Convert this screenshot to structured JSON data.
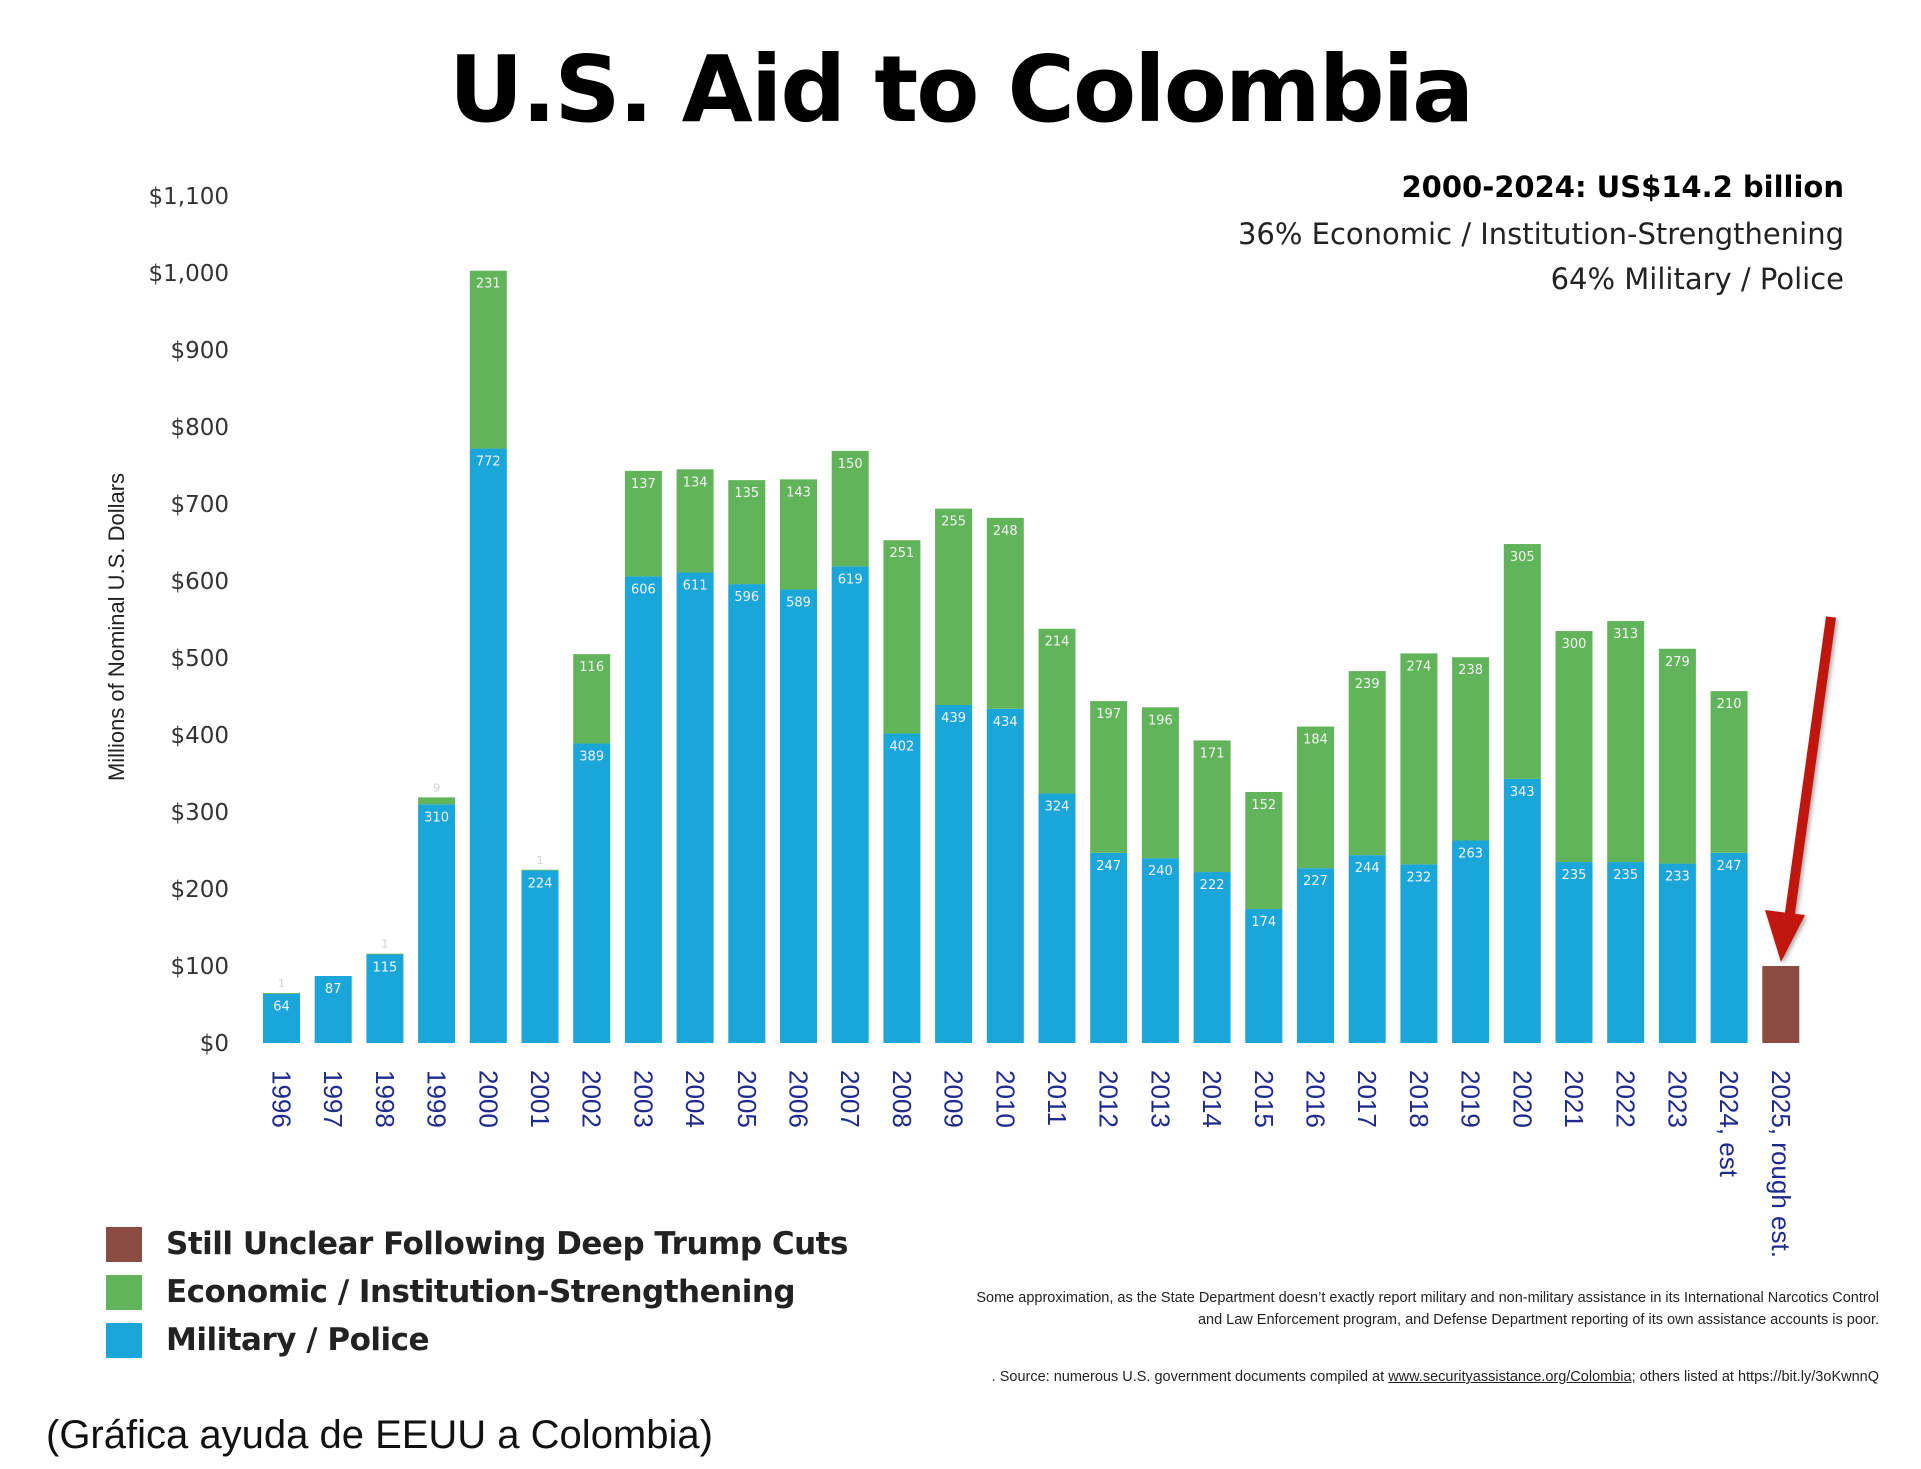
{
  "chart_data": {
    "type": "bar",
    "stacked": true,
    "title": "U.S. Aid to Colombia",
    "xlabel": "",
    "ylabel": "Millions of Nominal U.S. Dollars",
    "ylim": [
      0,
      1100
    ],
    "yticks": [
      0,
      100,
      200,
      300,
      400,
      500,
      600,
      700,
      800,
      900,
      1000,
      1100
    ],
    "ytick_labels": [
      "$0",
      "$100",
      "$200",
      "$300",
      "$400",
      "$500",
      "$600",
      "$700",
      "$800",
      "$900",
      "$1,000",
      "$1,100"
    ],
    "grid": false,
    "legend_position": "bottom-left",
    "categories": [
      "1996",
      "1997",
      "1998",
      "1999",
      "2000",
      "2001",
      "2002",
      "2003",
      "2004",
      "2005",
      "2006",
      "2007",
      "2008",
      "2009",
      "2010",
      "2011",
      "2012",
      "2013",
      "2014",
      "2015",
      "2016",
      "2017",
      "2018",
      "2019",
      "2020",
      "2021",
      "2022",
      "2023",
      "2024, est",
      "2025, rough est."
    ],
    "series": [
      {
        "name": "Military / Police",
        "color": "#1ba6da",
        "values": [
          64,
          87,
          115,
          310,
          772,
          224,
          389,
          606,
          611,
          596,
          589,
          619,
          402,
          439,
          434,
          324,
          247,
          240,
          222,
          174,
          227,
          244,
          232,
          263,
          343,
          235,
          235,
          233,
          247,
          null
        ],
        "labels": [
          "64",
          "87",
          "115",
          "310",
          "772",
          "224",
          "389",
          "606",
          "611",
          "596",
          "589",
          "619",
          "402",
          "439",
          "434",
          "324",
          "247",
          "240",
          "222",
          "174",
          "227",
          "244",
          "232",
          "263",
          "343",
          "235",
          "235",
          "233",
          "247",
          ""
        ]
      },
      {
        "name": "Economic / Institution-Strengthening",
        "color": "#62b45a",
        "values": [
          1,
          0,
          1,
          9,
          231,
          1,
          116,
          137,
          134,
          135,
          143,
          150,
          251,
          255,
          248,
          214,
          197,
          196,
          171,
          152,
          184,
          239,
          274,
          238,
          305,
          300,
          313,
          279,
          210,
          null
        ],
        "labels": [
          "1",
          "",
          "1",
          "9",
          "231",
          "1",
          "116",
          "137",
          "134",
          "135",
          "143",
          "150",
          "251",
          "255",
          "248",
          "214",
          "197",
          "196",
          "171",
          "152",
          "184",
          "239",
          "274",
          "238",
          "305",
          "300",
          "313",
          "279",
          "210",
          ""
        ]
      },
      {
        "name": "Still Unclear Following Deep Trump Cuts",
        "color": "#8b4a42",
        "values": [
          null,
          null,
          null,
          null,
          null,
          null,
          null,
          null,
          null,
          null,
          null,
          null,
          null,
          null,
          null,
          null,
          null,
          null,
          null,
          null,
          null,
          null,
          null,
          null,
          null,
          null,
          null,
          null,
          null,
          100
        ],
        "labels": []
      }
    ],
    "annotations": [
      {
        "type": "arrow",
        "color": "#c0190f",
        "points_to": "2025, rough est."
      }
    ]
  },
  "summary": {
    "total": "2000-2024: US$14.2 billion",
    "economic_share": "36% Economic / Institution-Strengthening",
    "military_share": "64% Military / Police"
  },
  "legend": [
    {
      "label": "Still Unclear Following Deep Trump Cuts",
      "color": "#8b4a42"
    },
    {
      "label": "Economic / Institution-Strengthening",
      "color": "#62b45a"
    },
    {
      "label": "Military / Police",
      "color": "#1ba6da"
    }
  ],
  "footnotes": {
    "approximation_line1": "Some approximation, as the State Department doesn’t exactly report military and non-military assistance in its International Narcotics Control",
    "approximation_line2": "and Law Enforcement program, and Defense Department reporting of its own assistance accounts is poor.",
    "source_prefix": ". Source: numerous U.S. government documents compiled at ",
    "source_link": "www.securityassistance.org/Colombia",
    "source_suffix": "; others listed at https://bit.ly/3oKwnnQ"
  },
  "caption": "(Gráfica ayuda de EEUU a Colombia)"
}
